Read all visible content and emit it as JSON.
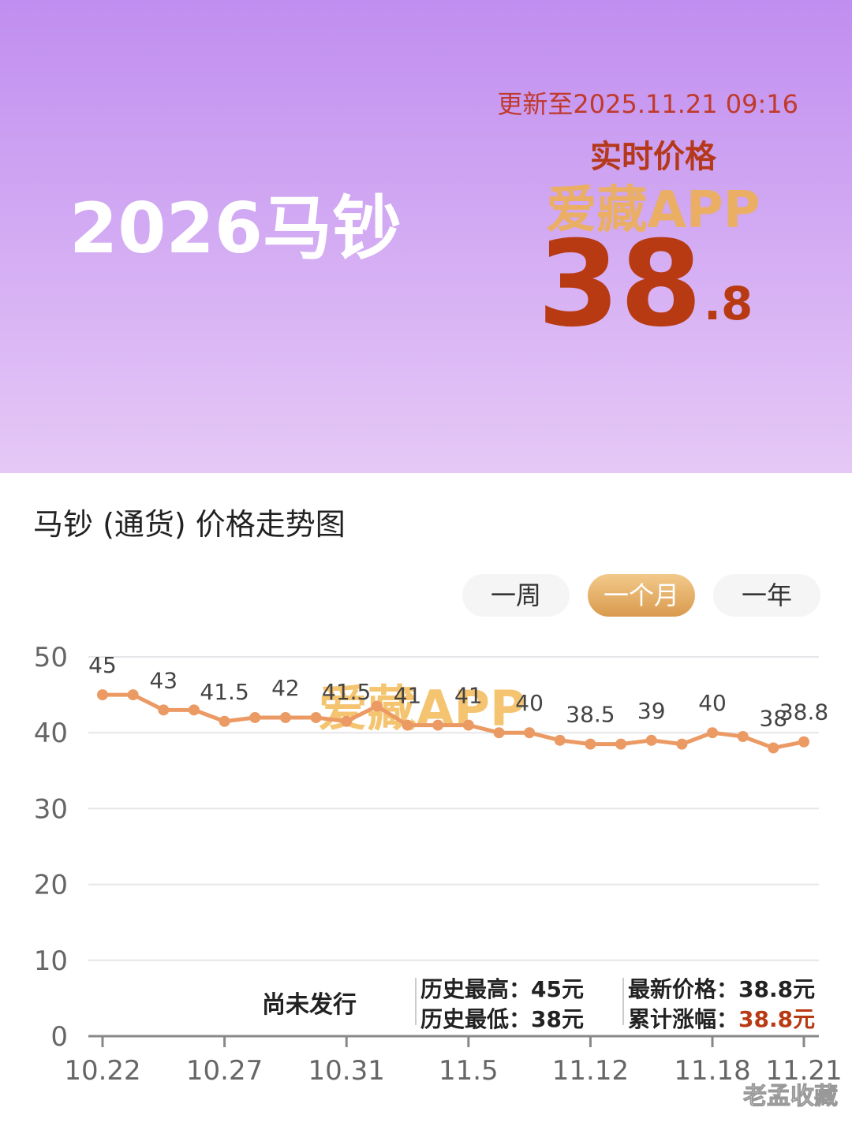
{
  "banner": {
    "title": "2026马钞",
    "updated": "更新至2025.11.21 09:16",
    "price_caption": "实时价格",
    "watermark": "爱藏APP",
    "price_int": "38",
    "price_dec": ".8"
  },
  "periods": [
    "一周",
    "一个月",
    "一年"
  ],
  "active_period": 1,
  "chart_data": {
    "type": "line",
    "title": "马钞 (通货) 价格走势图",
    "categories": [
      "10.22",
      null,
      null,
      null,
      "10.27",
      null,
      null,
      null,
      "10.31",
      null,
      null,
      null,
      "11.5",
      null,
      null,
      null,
      "11.12",
      null,
      null,
      null,
      "11.18",
      null,
      null,
      "11.21"
    ],
    "series": [
      {
        "name": "马钞",
        "color": "#eb9a64",
        "values": [
          45,
          45,
          43,
          43,
          41.5,
          42,
          42,
          42,
          41.5,
          43.5,
          41,
          41,
          41,
          40,
          40,
          39,
          38.5,
          38.5,
          39,
          38.5,
          40,
          39.5,
          38,
          38.8
        ],
        "value_labels": [
          "45",
          null,
          "43",
          null,
          "41.5",
          null,
          "42",
          null,
          "41.5",
          null,
          "41",
          null,
          "41",
          null,
          "40",
          null,
          "38.5",
          null,
          "39",
          null,
          "40",
          null,
          "38",
          "38.8"
        ]
      }
    ],
    "ylim": [
      0,
      50
    ],
    "yticks": [
      0,
      10,
      20,
      30,
      40,
      50
    ],
    "grid": true,
    "watermark": "爱藏APP"
  },
  "stats": {
    "status": "尚未发行",
    "high": "历史最高：45元",
    "low": "历史最低：38元",
    "latest": "最新价格：38.8元",
    "change_label": "累计涨幅：",
    "change_value": "38.8元"
  },
  "footer_watermark": "老孟收藏"
}
